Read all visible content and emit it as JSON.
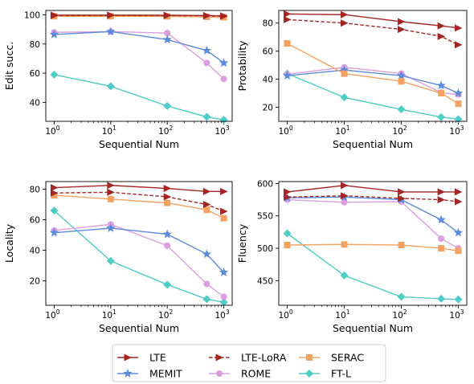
{
  "chart_data": [
    {
      "type": "line",
      "xlabel": "Sequential Num",
      "ylabel": "Edit succ.",
      "xscale": "log",
      "x": [
        1,
        10,
        100,
        500,
        1000
      ],
      "ylim": [
        27,
        103
      ],
      "yticks": [
        40,
        60,
        80,
        100
      ],
      "series": [
        {
          "name": "LTE",
          "values": [
            99.8,
            99.8,
            99.7,
            99.5,
            99.3
          ]
        },
        {
          "name": "LTE-LoRA",
          "values": [
            99.5,
            99.6,
            99.5,
            99.3,
            99.0
          ]
        },
        {
          "name": "SERAC",
          "values": [
            99.0,
            99.0,
            98.9,
            98.6,
            98.3
          ]
        },
        {
          "name": "MEMIT",
          "values": [
            86.5,
            88.5,
            83.0,
            75.5,
            67.0
          ]
        },
        {
          "name": "ROME",
          "values": [
            88.0,
            88.5,
            87.5,
            67.0,
            56.0
          ]
        },
        {
          "name": "FT-L",
          "values": [
            59.0,
            51.0,
            37.5,
            30.0,
            28.0
          ]
        }
      ]
    },
    {
      "type": "line",
      "xlabel": "Sequential Num",
      "ylabel": "Protability",
      "xscale": "log",
      "x": [
        1,
        10,
        100,
        500,
        1000
      ],
      "ylim": [
        10,
        89
      ],
      "yticks": [
        20,
        40,
        60,
        80
      ],
      "series": [
        {
          "name": "LTE",
          "values": [
            86.5,
            86.0,
            81.0,
            78.0,
            76.5
          ]
        },
        {
          "name": "LTE-LoRA",
          "values": [
            82.5,
            80.0,
            75.5,
            70.5,
            64.5
          ]
        },
        {
          "name": "SERAC",
          "values": [
            65.5,
            44.0,
            38.5,
            30.0,
            22.5
          ]
        },
        {
          "name": "MEMIT",
          "values": [
            42.5,
            46.5,
            42.5,
            35.5,
            30.0
          ]
        },
        {
          "name": "ROME",
          "values": [
            43.5,
            48.5,
            44.0,
            30.5,
            29.0
          ]
        },
        {
          "name": "FT-L",
          "values": [
            44.0,
            27.0,
            18.5,
            13.0,
            11.5
          ]
        }
      ]
    },
    {
      "type": "line",
      "xlabel": "Sequential Num",
      "ylabel": "Locality",
      "xscale": "log",
      "x": [
        1,
        10,
        100,
        500,
        1000
      ],
      "ylim": [
        4,
        85
      ],
      "yticks": [
        20,
        40,
        60,
        80
      ],
      "series": [
        {
          "name": "LTE",
          "values": [
            81.0,
            82.5,
            80.5,
            78.5,
            78.5
          ]
        },
        {
          "name": "LTE-LoRA",
          "values": [
            77.5,
            78.0,
            75.0,
            70.0,
            65.5
          ]
        },
        {
          "name": "SERAC",
          "values": [
            76.0,
            73.5,
            71.0,
            66.5,
            61.0
          ]
        },
        {
          "name": "MEMIT",
          "values": [
            51.5,
            54.5,
            50.5,
            37.5,
            25.5
          ]
        },
        {
          "name": "ROME",
          "values": [
            53.0,
            57.0,
            43.0,
            18.0,
            9.5
          ]
        },
        {
          "name": "FT-L",
          "values": [
            66.0,
            33.0,
            17.5,
            8.0,
            6.0
          ]
        }
      ]
    },
    {
      "type": "line",
      "xlabel": "Sequential Num",
      "ylabel": "Fluency",
      "xscale": "log",
      "x": [
        1,
        10,
        100,
        500,
        1000
      ],
      "ylim": [
        412,
        603
      ],
      "yticks": [
        450,
        500,
        550,
        600
      ],
      "series": [
        {
          "name": "LTE",
          "values": [
            587,
            597,
            587,
            587,
            587
          ]
        },
        {
          "name": "LTE-LoRA",
          "values": [
            579,
            581,
            577,
            575,
            572
          ]
        },
        {
          "name": "SERAC",
          "values": [
            505,
            506,
            505,
            500,
            496
          ]
        },
        {
          "name": "MEMIT",
          "values": [
            578,
            579,
            575,
            544,
            524
          ]
        },
        {
          "name": "ROME",
          "values": [
            575,
            571,
            572,
            515,
            500
          ]
        },
        {
          "name": "FT-L",
          "values": [
            523,
            458,
            425,
            422,
            421
          ]
        }
      ]
    }
  ],
  "x_tick_labels": [
    {
      "base": "10",
      "exp": "0"
    },
    {
      "base": "10",
      "exp": "1"
    },
    {
      "base": "10",
      "exp": "2"
    },
    {
      "base": "10",
      "exp": "3"
    }
  ],
  "styles": {
    "LTE": {
      "color": "#a52525",
      "marker": "triangle-right",
      "dash": false
    },
    "LTE-LoRA": {
      "color": "#a52525",
      "marker": "triangle-right",
      "dash": true
    },
    "SERAC": {
      "color": "#f4a261",
      "marker": "square",
      "dash": false
    },
    "MEMIT": {
      "color": "#5b8bdc",
      "marker": "star",
      "dash": false
    },
    "ROME": {
      "color": "#dc9ee0",
      "marker": "circle",
      "dash": false
    },
    "FT-L": {
      "color": "#4ecdc4",
      "marker": "diamond",
      "dash": false
    }
  },
  "legend": {
    "placement": "bottom-center",
    "columns": [
      [
        "LTE",
        "MEMIT"
      ],
      [
        "LTE-LoRA",
        "ROME"
      ],
      [
        "SERAC",
        "FT-L"
      ]
    ]
  }
}
